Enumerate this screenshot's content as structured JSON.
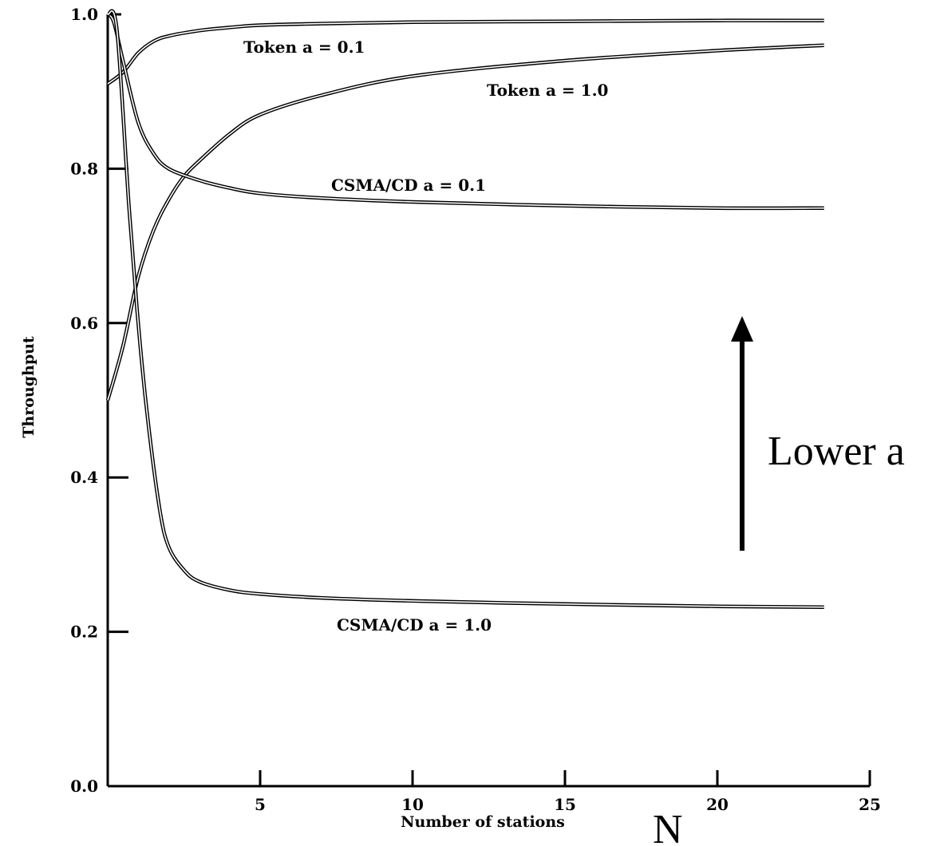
{
  "chart_data": {
    "type": "line",
    "title": "",
    "xlabel": "Number of stations",
    "ylabel": "Throughput",
    "xlim": [
      0,
      25
    ],
    "ylim": [
      0.0,
      1.0
    ],
    "x_ticks": [
      5,
      10,
      15,
      20,
      25
    ],
    "x_tick_labels": [
      "5",
      "10",
      "15",
      "20",
      "25"
    ],
    "y_ticks": [
      0.0,
      0.2,
      0.4,
      0.6,
      0.8,
      1.0
    ],
    "y_tick_labels": [
      "0.0",
      "0.2",
      "0.4",
      "0.6",
      "0.8",
      "1.0"
    ],
    "grid": false,
    "legend": "none",
    "series": [
      {
        "name": "Token a = 0.1",
        "x": [
          0,
          0.5,
          1,
          1.5,
          2,
          3,
          4,
          5,
          7,
          10,
          15,
          20,
          23.5
        ],
        "y": [
          0.91,
          0.925,
          0.95,
          0.965,
          0.972,
          0.979,
          0.983,
          0.986,
          0.988,
          0.99,
          0.991,
          0.992,
          0.992
        ]
      },
      {
        "name": "Token a = 1.0",
        "x": [
          0,
          0.5,
          1,
          1.5,
          2,
          2.5,
          3,
          4,
          5,
          7,
          10,
          15,
          20,
          23.5
        ],
        "y": [
          0.5,
          0.57,
          0.66,
          0.72,
          0.76,
          0.79,
          0.81,
          0.845,
          0.87,
          0.895,
          0.92,
          0.94,
          0.953,
          0.96
        ]
      },
      {
        "name": "CSMA/CD a = 0.1",
        "x": [
          0,
          0.2,
          0.5,
          1,
          1.5,
          2,
          3,
          4,
          5,
          7,
          10,
          15,
          20,
          23.5
        ],
        "y": [
          1.0,
          0.99,
          0.94,
          0.86,
          0.82,
          0.8,
          0.785,
          0.775,
          0.768,
          0.762,
          0.757,
          0.752,
          0.749,
          0.749
        ]
      },
      {
        "name": "CSMA/CD a = 1.0",
        "x": [
          0,
          0.3,
          0.7,
          1,
          1.3,
          1.7,
          2,
          2.5,
          3,
          4,
          5,
          7,
          10,
          15,
          20,
          23.5
        ],
        "y": [
          1.0,
          0.98,
          0.75,
          0.6,
          0.48,
          0.36,
          0.31,
          0.28,
          0.265,
          0.254,
          0.249,
          0.244,
          0.24,
          0.236,
          0.233,
          0.232
        ]
      }
    ],
    "annotations": [
      {
        "text": "Token a = 0.1"
      },
      {
        "text": "Token a = 1.0"
      },
      {
        "text": "CSMA/CD a = 0.1"
      },
      {
        "text": "CSMA/CD a = 1.0"
      },
      {
        "text": "Lower a"
      },
      {
        "text": "N"
      }
    ]
  }
}
